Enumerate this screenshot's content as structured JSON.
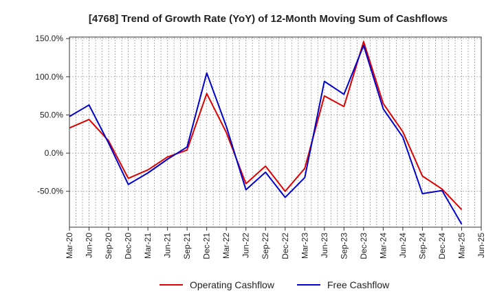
{
  "chart_data": {
    "type": "line",
    "title": "[4768]  Trend of Growth Rate (YoY) of 12-Month Moving Sum of Cashflows",
    "xlabel": "",
    "ylabel": "",
    "x": [
      "Mar-20",
      "Apr-20",
      "May-20",
      "Jun-20",
      "Jul-20",
      "Aug-20",
      "Sep-20",
      "Oct-20",
      "Nov-20",
      "Dec-20",
      "Jan-21",
      "Feb-21",
      "Mar-21",
      "Apr-21",
      "May-21",
      "Jun-21",
      "Jul-21",
      "Aug-21",
      "Sep-21",
      "Oct-21",
      "Nov-21",
      "Dec-21",
      "Jan-22",
      "Feb-22",
      "Mar-22",
      "Apr-22",
      "May-22",
      "Jun-22",
      "Jul-22",
      "Aug-22",
      "Sep-22",
      "Oct-22",
      "Nov-22",
      "Dec-22",
      "Jan-23",
      "Feb-23",
      "Mar-23",
      "Apr-23",
      "May-23",
      "Jun-23",
      "Jul-23",
      "Aug-23",
      "Sep-23",
      "Oct-23",
      "Nov-23",
      "Dec-23",
      "Jan-24",
      "Feb-24",
      "Mar-24",
      "Apr-24",
      "May-24",
      "Jun-24",
      "Jul-24",
      "Aug-24",
      "Sep-24",
      "Oct-24",
      "Nov-24",
      "Dec-24",
      "Jan-25",
      "Feb-25",
      "Mar-25",
      "Apr-25",
      "May-25",
      "Jun-25"
    ],
    "x_tick_labels": [
      "Mar-20",
      "Jun-20",
      "Sep-20",
      "Dec-20",
      "Mar-21",
      "Jun-21",
      "Sep-21",
      "Dec-21",
      "Mar-22",
      "Jun-22",
      "Sep-22",
      "Dec-22",
      "Mar-23",
      "Jun-23",
      "Sep-23",
      "Dec-23",
      "Mar-24",
      "Jun-24",
      "Sep-24",
      "Dec-24",
      "Mar-25",
      "Jun-25"
    ],
    "y_ticks": [
      150,
      100,
      50,
      0,
      -50
    ],
    "y_tick_labels": [
      "150.0%",
      "100.0%",
      "50.0%",
      "0.0%",
      "-50.0%"
    ],
    "ylim": [
      -97,
      152
    ],
    "grid": true,
    "legend_position": "bottom",
    "series": [
      {
        "name": "Operating Cashflow",
        "color": "#dd0000",
        "values": [
          33,
          null,
          null,
          44,
          null,
          null,
          16,
          null,
          null,
          -33,
          null,
          null,
          -22,
          null,
          null,
          -5,
          null,
          null,
          4,
          null,
          null,
          78,
          null,
          null,
          27,
          null,
          null,
          -40,
          null,
          null,
          -17,
          null,
          null,
          -50,
          null,
          null,
          -20,
          null,
          null,
          75,
          null,
          null,
          61,
          null,
          null,
          146,
          null,
          null,
          65,
          null,
          null,
          28,
          null,
          null,
          -30,
          null,
          null,
          -47,
          null,
          null,
          -74,
          null,
          null,
          null
        ]
      },
      {
        "name": "Free Cashflow",
        "color": "#0000cc",
        "values": [
          48,
          null,
          null,
          63,
          null,
          null,
          13,
          null,
          null,
          -41,
          null,
          null,
          -26,
          null,
          null,
          -8,
          null,
          null,
          8,
          null,
          null,
          105,
          null,
          null,
          35,
          null,
          null,
          -48,
          null,
          null,
          -25,
          null,
          null,
          -58,
          null,
          null,
          -32,
          null,
          null,
          94,
          null,
          null,
          77,
          null,
          null,
          141,
          null,
          null,
          58,
          null,
          null,
          21,
          null,
          null,
          -53,
          null,
          null,
          -49,
          null,
          null,
          -93,
          null,
          null,
          null
        ]
      }
    ]
  }
}
